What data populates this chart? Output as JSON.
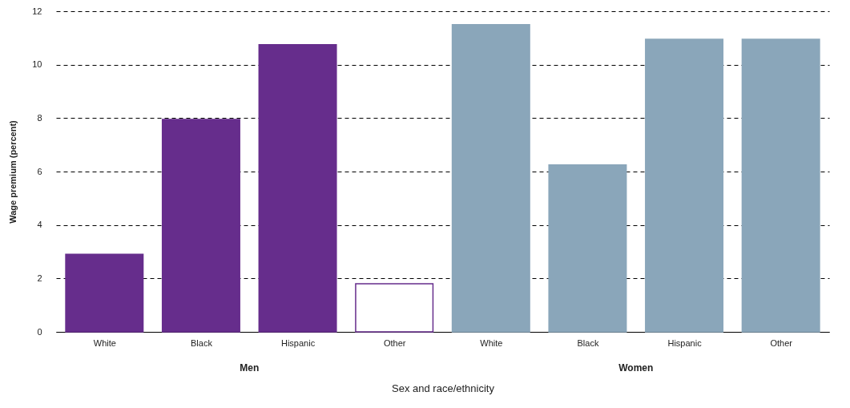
{
  "chart_data": {
    "type": "bar",
    "ylabel": "Wage premium (percent)",
    "xlabel": "Sex and race/ethnicity",
    "categories": [
      "White",
      "Black",
      "Hispanic",
      "Other",
      "White",
      "Black",
      "Hispanic",
      "Other"
    ],
    "values": [
      2.9,
      7.95,
      10.75,
      1.8,
      11.5,
      6.25,
      10.95,
      10.95
    ],
    "colors": [
      "#662d8c",
      "#662d8c",
      "#662d8c",
      "#ffffff",
      "#8aa6ba",
      "#8aa6ba",
      "#8aa6ba",
      "#8aa6ba"
    ],
    "annotations": [
      "Men",
      "Women"
    ],
    "ylim": [
      0,
      12
    ],
    "yticks": [
      0,
      2,
      4,
      6,
      8,
      10,
      12
    ],
    "grid": "y"
  }
}
